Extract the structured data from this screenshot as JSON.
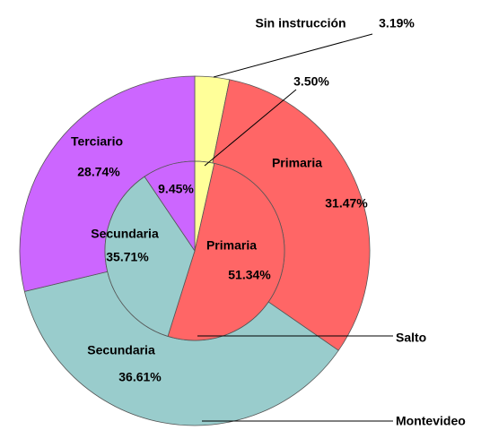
{
  "chart_data": {
    "type": "donut",
    "categories": [
      "Sin instrucción",
      "Primaria",
      "Secundaria",
      "Terciario"
    ],
    "colors": [
      "#ffff99",
      "#ff6666",
      "#99cccc",
      "#cc66ff"
    ],
    "series": [
      {
        "name": "Montevideo",
        "values": [
          3.19,
          31.47,
          36.61,
          28.74
        ],
        "value_labels": [
          "3.19%",
          "31.47%",
          "36.61%",
          "28.74%"
        ]
      },
      {
        "name": "Salto",
        "values": [
          3.5,
          51.34,
          35.71,
          9.45
        ],
        "value_labels": [
          "3.50%",
          "51.34%",
          "35.71%",
          "9.45%"
        ]
      }
    ]
  }
}
